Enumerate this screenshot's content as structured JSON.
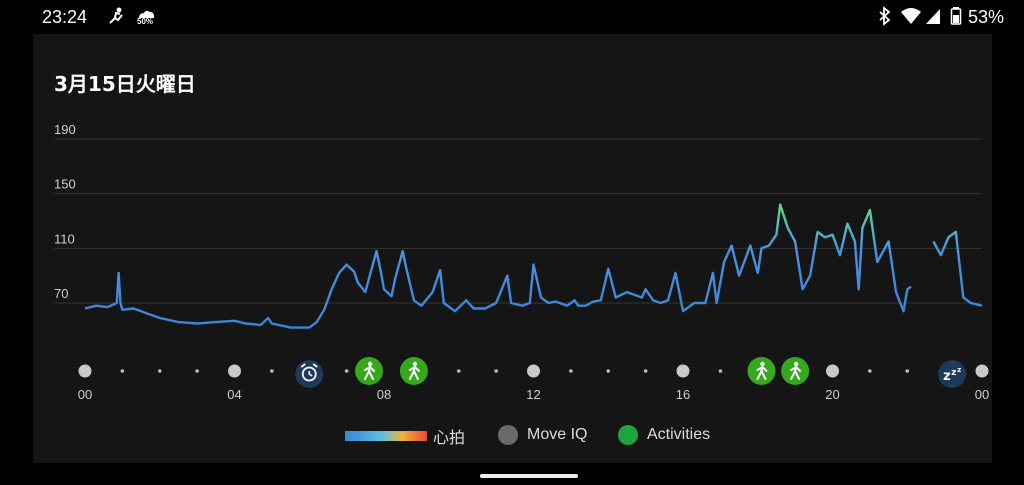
{
  "status_bar": {
    "time": "23:24",
    "notif_icons": [
      "exercise-icon",
      "weather-icon"
    ],
    "weather_text": "50%",
    "right_icons": [
      "bluetooth-icon",
      "wifi-icon",
      "signal-icon",
      "battery-icon"
    ],
    "battery": "53%"
  },
  "title": "3月15日火曜日",
  "legend": {
    "heart_rate": "心拍",
    "move_iq": "Move IQ",
    "activities": "Activities"
  },
  "colors": {
    "line_low": "#3a86d8",
    "line_high": "#6fcf5a",
    "activity_green": "#1ea43c",
    "marker_dark": "#1d3a5a",
    "move_iq_grey": "#6a6a6a"
  },
  "chart_data": {
    "type": "line",
    "title": "",
    "xlabel": "",
    "ylabel": "",
    "x_ticks": [
      "00",
      "04",
      "08",
      "12",
      "16",
      "20",
      "00"
    ],
    "y_ticks": [
      70,
      110,
      150,
      190
    ],
    "ylim": [
      45,
      200
    ],
    "xlim": [
      0,
      24
    ],
    "grid": "horizontal",
    "series": [
      {
        "name": "心拍",
        "points": [
          [
            0.0,
            66
          ],
          [
            0.3,
            68
          ],
          [
            0.6,
            67
          ],
          [
            0.85,
            70
          ],
          [
            0.9,
            92
          ],
          [
            0.95,
            70
          ],
          [
            1.0,
            65
          ],
          [
            1.3,
            66
          ],
          [
            1.6,
            63
          ],
          [
            2.0,
            59
          ],
          [
            2.5,
            56
          ],
          [
            3.0,
            55
          ],
          [
            3.5,
            56
          ],
          [
            4.0,
            57
          ],
          [
            4.3,
            55
          ],
          [
            4.7,
            54
          ],
          [
            4.9,
            59
          ],
          [
            5.0,
            55
          ],
          [
            5.5,
            52
          ],
          [
            6.0,
            52
          ],
          [
            6.2,
            56
          ],
          [
            6.4,
            65
          ],
          [
            6.6,
            80
          ],
          [
            6.8,
            92
          ],
          [
            7.0,
            98
          ],
          [
            7.2,
            93
          ],
          [
            7.3,
            85
          ],
          [
            7.5,
            78
          ],
          [
            7.7,
            98
          ],
          [
            7.8,
            108
          ],
          [
            7.9,
            95
          ],
          [
            8.0,
            80
          ],
          [
            8.2,
            75
          ],
          [
            8.3,
            88
          ],
          [
            8.5,
            108
          ],
          [
            8.6,
            95
          ],
          [
            8.8,
            72
          ],
          [
            9.0,
            68
          ],
          [
            9.3,
            78
          ],
          [
            9.5,
            94
          ],
          [
            9.6,
            70
          ],
          [
            9.9,
            64
          ],
          [
            10.2,
            72
          ],
          [
            10.4,
            66
          ],
          [
            10.7,
            66
          ],
          [
            11.0,
            70
          ],
          [
            11.3,
            90
          ],
          [
            11.4,
            70
          ],
          [
            11.7,
            68
          ],
          [
            11.9,
            70
          ],
          [
            12.0,
            98
          ],
          [
            12.2,
            74
          ],
          [
            12.4,
            70
          ],
          [
            12.6,
            71
          ],
          [
            12.9,
            68
          ],
          [
            13.1,
            72
          ],
          [
            13.2,
            68
          ],
          [
            13.4,
            68
          ],
          [
            13.6,
            71
          ],
          [
            13.8,
            72
          ],
          [
            14.0,
            95
          ],
          [
            14.2,
            74
          ],
          [
            14.5,
            78
          ],
          [
            14.9,
            74
          ],
          [
            15.0,
            80
          ],
          [
            15.2,
            72
          ],
          [
            15.4,
            70
          ],
          [
            15.6,
            72
          ],
          [
            15.8,
            92
          ],
          [
            16.0,
            64
          ],
          [
            16.3,
            70
          ],
          [
            16.6,
            70
          ],
          [
            16.8,
            92
          ],
          [
            16.9,
            70
          ],
          [
            17.1,
            100
          ],
          [
            17.3,
            112
          ],
          [
            17.5,
            90
          ],
          [
            17.8,
            112
          ],
          [
            18.0,
            92
          ],
          [
            18.1,
            110
          ],
          [
            18.3,
            112
          ],
          [
            18.5,
            120
          ],
          [
            18.6,
            142
          ],
          [
            18.8,
            125
          ],
          [
            19.0,
            115
          ],
          [
            19.2,
            80
          ],
          [
            19.4,
            90
          ],
          [
            19.6,
            122
          ],
          [
            19.8,
            118
          ],
          [
            20.0,
            120
          ],
          [
            20.2,
            105
          ],
          [
            20.4,
            128
          ],
          [
            20.6,
            115
          ],
          [
            20.7,
            80
          ],
          [
            20.8,
            125
          ],
          [
            21.0,
            138
          ],
          [
            21.2,
            100
          ],
          [
            21.5,
            115
          ],
          [
            21.7,
            78
          ],
          [
            21.9,
            64
          ],
          [
            22.0,
            80
          ],
          [
            22.1,
            82
          ],
          null,
          [
            22.7,
            115
          ],
          [
            22.9,
            105
          ],
          [
            23.1,
            118
          ],
          [
            23.3,
            122
          ],
          [
            23.5,
            74
          ],
          [
            23.7,
            70
          ],
          [
            24.0,
            68
          ]
        ]
      }
    ],
    "markers": [
      {
        "hour": 0,
        "kind": "move_iq",
        "icon": "dot"
      },
      {
        "hour": 4,
        "kind": "move_iq",
        "icon": "dot"
      },
      {
        "hour": 6,
        "kind": "alarm",
        "icon": "alarm-clock-icon"
      },
      {
        "hour": 7.6,
        "kind": "activity",
        "icon": "walking-icon"
      },
      {
        "hour": 8.8,
        "kind": "activity",
        "icon": "walking-icon"
      },
      {
        "hour": 12,
        "kind": "move_iq",
        "icon": "dot"
      },
      {
        "hour": 16,
        "kind": "move_iq",
        "icon": "dot"
      },
      {
        "hour": 18.1,
        "kind": "activity",
        "icon": "walking-icon"
      },
      {
        "hour": 19.0,
        "kind": "activity",
        "icon": "walking-icon"
      },
      {
        "hour": 20,
        "kind": "move_iq",
        "icon": "dot"
      },
      {
        "hour": 23.2,
        "kind": "sleep",
        "icon": "sleep-zzz-icon"
      },
      {
        "hour": 24,
        "kind": "move_iq",
        "icon": "dot"
      }
    ]
  }
}
